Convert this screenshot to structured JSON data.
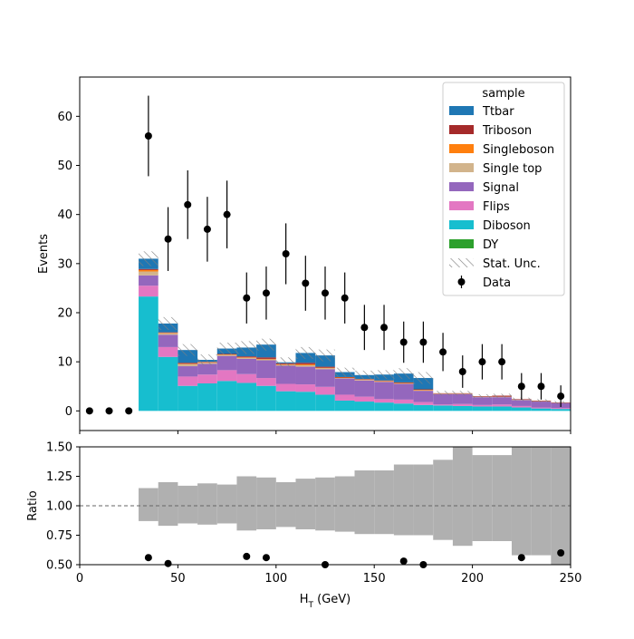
{
  "chart_data": [
    {
      "type": "bar",
      "stacked": true,
      "histogram": true,
      "xlabel": "H_T (GeV)",
      "ylabel": "Events",
      "xlim": [
        0,
        250
      ],
      "ylim": [
        -4,
        68
      ],
      "xticks": [
        0,
        50,
        100,
        150,
        200,
        250
      ],
      "yticks": [
        0,
        10,
        20,
        30,
        40,
        50,
        60
      ],
      "bin_edges": [
        30,
        40,
        50,
        60,
        70,
        80,
        90,
        100,
        110,
        120,
        130,
        140,
        150,
        160,
        170,
        180,
        190,
        200,
        210,
        220,
        230,
        240,
        250
      ],
      "legend_title": "sample",
      "legend_position": "top-right",
      "legend_entries": [
        {
          "label": "Ttbar",
          "kind": "patch",
          "color": "#1f77b4"
        },
        {
          "label": "Triboson",
          "kind": "patch",
          "color": "#a52a2a"
        },
        {
          "label": "Singleboson",
          "kind": "patch",
          "color": "#ff7f0e"
        },
        {
          "label": "Single top",
          "kind": "patch",
          "color": "#d2b48c"
        },
        {
          "label": "Signal",
          "kind": "patch",
          "color": "#9467bd"
        },
        {
          "label": "Flips",
          "kind": "patch",
          "color": "#e377c2"
        },
        {
          "label": "Diboson",
          "kind": "patch",
          "color": "#17becf"
        },
        {
          "label": "DY",
          "kind": "patch",
          "color": "#2ca02c"
        },
        {
          "label": "Stat. Unc.",
          "kind": "hatch",
          "color": "#808080"
        },
        {
          "label": "Data",
          "kind": "errorbar",
          "color": "#000000"
        }
      ],
      "series": [
        {
          "name": "Diboson",
          "color": "#17becf",
          "values": [
            23.3,
            11.0,
            5.1,
            5.6,
            6.1,
            5.7,
            5.1,
            4.0,
            3.9,
            3.3,
            2.1,
            1.9,
            1.7,
            1.5,
            1.2,
            1.1,
            1.0,
            0.9,
            0.9,
            0.7,
            0.5,
            0.4
          ]
        },
        {
          "name": "DY",
          "color": "#2ca02c",
          "values": [
            0,
            0,
            0,
            0,
            0,
            0,
            0,
            0,
            0,
            0,
            0,
            0,
            0,
            0,
            0,
            0,
            0,
            0,
            0,
            0,
            0,
            0
          ]
        },
        {
          "name": "Flips",
          "color": "#e377c2",
          "values": [
            2.2,
            2.0,
            1.9,
            1.8,
            2.2,
            1.8,
            1.6,
            1.5,
            1.5,
            1.6,
            1.2,
            1.0,
            0.7,
            0.8,
            0.6,
            0.2,
            0.4,
            0.3,
            0.4,
            0.3,
            0.2,
            0.2
          ]
        },
        {
          "name": "Signal",
          "color": "#9467bd",
          "values": [
            2.1,
            2.5,
            2.1,
            2.2,
            2.9,
            3.1,
            3.6,
            3.7,
            3.6,
            3.6,
            3.3,
            3.3,
            3.5,
            3.2,
            2.3,
            2.1,
            2.0,
            1.6,
            1.5,
            1.2,
            1.2,
            1.0
          ]
        },
        {
          "name": "Single top",
          "color": "#d2b48c",
          "values": [
            0.8,
            0.3,
            0.4,
            0.2,
            0.2,
            0.2,
            0.2,
            0.2,
            0.3,
            0.2,
            0.1,
            0.1,
            0.1,
            0.1,
            0.1,
            0.1,
            0.1,
            0.1,
            0.1,
            0.1,
            0.1,
            0.0
          ]
        },
        {
          "name": "Singleboson",
          "color": "#ff7f0e",
          "values": [
            0.3,
            0.1,
            0.1,
            0.1,
            0.1,
            0.1,
            0.1,
            0.1,
            0.2,
            0.1,
            0.1,
            0.1,
            0.1,
            0.1,
            0.1,
            0.0,
            0.0,
            0.0,
            0.0,
            0.0,
            0.0,
            0.0
          ]
        },
        {
          "name": "Triboson",
          "color": "#a52a2a",
          "values": [
            0.2,
            0.1,
            0.2,
            0.1,
            0.1,
            0.2,
            0.3,
            0.2,
            0.3,
            0.2,
            0.1,
            0.1,
            0.1,
            0.1,
            0.1,
            0.1,
            0.1,
            0.1,
            0.2,
            0.1,
            0.1,
            0.1
          ]
        },
        {
          "name": "Ttbar",
          "color": "#1f77b4",
          "values": [
            2.1,
            1.8,
            2.6,
            0.4,
            1.1,
            1.8,
            2.6,
            0.2,
            2.0,
            2.3,
            1.0,
            0.8,
            1.2,
            1.8,
            2.3,
            0.0,
            0.0,
            0.0,
            0.0,
            0.0,
            0.0,
            0.0
          ]
        }
      ],
      "stat_unc": [
        1.5,
        1.3,
        1.2,
        1.1,
        1.2,
        1.3,
        1.2,
        1.0,
        1.2,
        1.2,
        0.9,
        0.9,
        0.9,
        1.1,
        1.2,
        0.5,
        0.5,
        0.4,
        0.4,
        0.3,
        0.3,
        0.3
      ],
      "data": {
        "x": [
          5,
          15,
          25,
          35,
          45,
          55,
          65,
          75,
          85,
          95,
          105,
          115,
          125,
          135,
          145,
          155,
          165,
          175,
          185,
          195,
          205,
          215,
          225,
          235,
          245
        ],
        "y": [
          0,
          0,
          0,
          56,
          35,
          42,
          37,
          40,
          23,
          24,
          32,
          26,
          24,
          23,
          17,
          17,
          14,
          14,
          12,
          8,
          10,
          10,
          5,
          5,
          3
        ],
        "yerr": [
          0,
          0,
          0,
          8.2,
          6.5,
          7.0,
          6.6,
          6.9,
          5.2,
          5.4,
          6.2,
          5.6,
          5.4,
          5.2,
          4.6,
          4.6,
          4.2,
          4.2,
          3.9,
          3.3,
          3.6,
          3.6,
          2.7,
          2.7,
          2.2
        ]
      }
    },
    {
      "type": "scatter",
      "xlabel": "H_T (GeV)",
      "ylabel": "Ratio",
      "xlim": [
        0,
        250
      ],
      "ylim": [
        0.5,
        1.5
      ],
      "xticks": [
        0,
        50,
        100,
        150,
        200,
        250
      ],
      "xtick_labels": [
        "0",
        "50",
        "100",
        "150",
        "200",
        "250"
      ],
      "yticks": [
        0.5,
        0.75,
        1.0,
        1.25,
        1.5
      ],
      "ytick_labels": [
        "0.50",
        "0.75",
        "1.00",
        "1.25",
        "1.50"
      ],
      "reference_line": 1.0,
      "unc_band": {
        "bin_edges": [
          30,
          40,
          50,
          60,
          70,
          80,
          90,
          100,
          110,
          120,
          130,
          140,
          150,
          160,
          170,
          180,
          190,
          200,
          210,
          220,
          230,
          240,
          250
        ],
        "low": [
          0.87,
          0.83,
          0.85,
          0.84,
          0.85,
          0.79,
          0.8,
          0.82,
          0.8,
          0.79,
          0.78,
          0.76,
          0.76,
          0.75,
          0.75,
          0.71,
          0.66,
          0.7,
          0.7,
          0.58,
          0.58,
          0.5
        ],
        "high": [
          1.15,
          1.2,
          1.17,
          1.19,
          1.18,
          1.25,
          1.24,
          1.2,
          1.23,
          1.24,
          1.25,
          1.3,
          1.3,
          1.35,
          1.35,
          1.39,
          1.5,
          1.43,
          1.43,
          1.5,
          1.5,
          1.5
        ]
      },
      "points": {
        "x": [
          35,
          45,
          85,
          95,
          125,
          165,
          175,
          225,
          245
        ],
        "y": [
          0.56,
          0.51,
          0.57,
          0.56,
          0.49,
          0.53,
          0.49,
          0.56,
          0.6
        ]
      }
    }
  ]
}
